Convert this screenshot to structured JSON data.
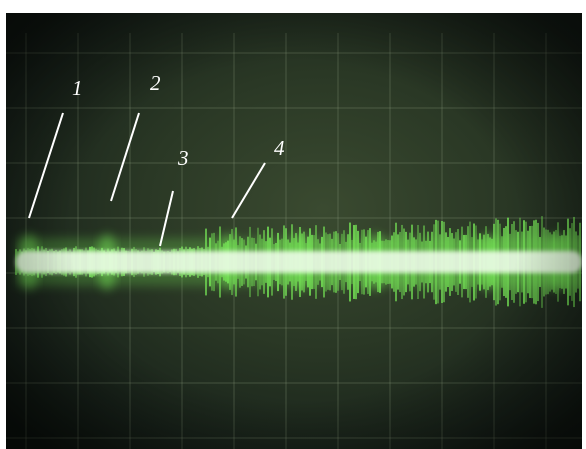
{
  "photo": {
    "subject": "oscilloscope-screen-trace",
    "trace_color": "#7cf45a",
    "core_color": "#f4fff0",
    "grid_color": "#8a9a7a"
  },
  "callouts": [
    {
      "label": "1"
    },
    {
      "label": "2"
    },
    {
      "label": "3"
    },
    {
      "label": "4"
    }
  ]
}
